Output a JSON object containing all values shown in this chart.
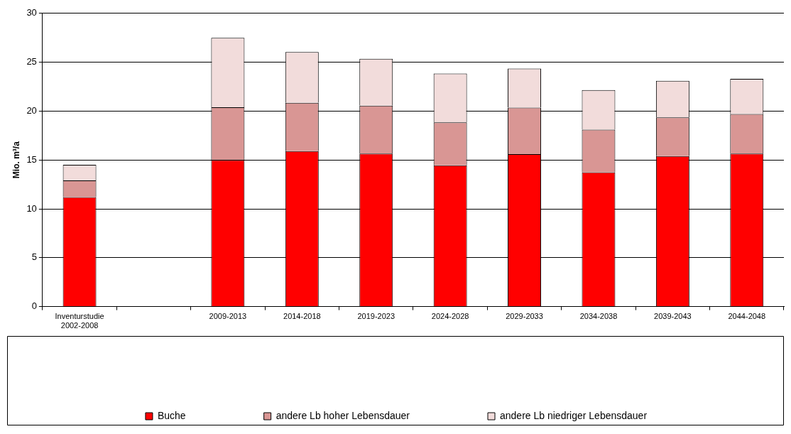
{
  "chart_data": {
    "type": "bar",
    "stacked": true,
    "ylabel": "Mio. m³/a",
    "categories": [
      "Inventurstudie\n2002-2008",
      null,
      "2009-2013",
      "2014-2018",
      "2019-2023",
      "2024-2028",
      "2029-2033",
      "2034-2038",
      "2039-2043",
      "2044-2048"
    ],
    "series": [
      {
        "name": "Buche",
        "color": "#ff0000",
        "values": [
          11.2,
          null,
          15.0,
          15.9,
          15.65,
          14.45,
          15.6,
          13.75,
          15.4,
          15.65
        ]
      },
      {
        "name": "andere Lb hoher Lebensdauer",
        "color": "#d99694",
        "values": [
          1.7,
          null,
          5.4,
          4.95,
          4.9,
          4.4,
          4.75,
          4.35,
          3.95,
          4.05
        ]
      },
      {
        "name": "andere Lb niedriger Lebensdauer",
        "color": "#f2dcdb",
        "values": [
          1.6,
          null,
          7.1,
          5.2,
          4.8,
          5.0,
          4.0,
          4.05,
          3.75,
          3.6
        ]
      }
    ],
    "ylim": [
      0,
      30
    ],
    "yticks": [
      0,
      5,
      10,
      15,
      20,
      25,
      30
    ],
    "grid": "y",
    "legend": "bottom"
  }
}
